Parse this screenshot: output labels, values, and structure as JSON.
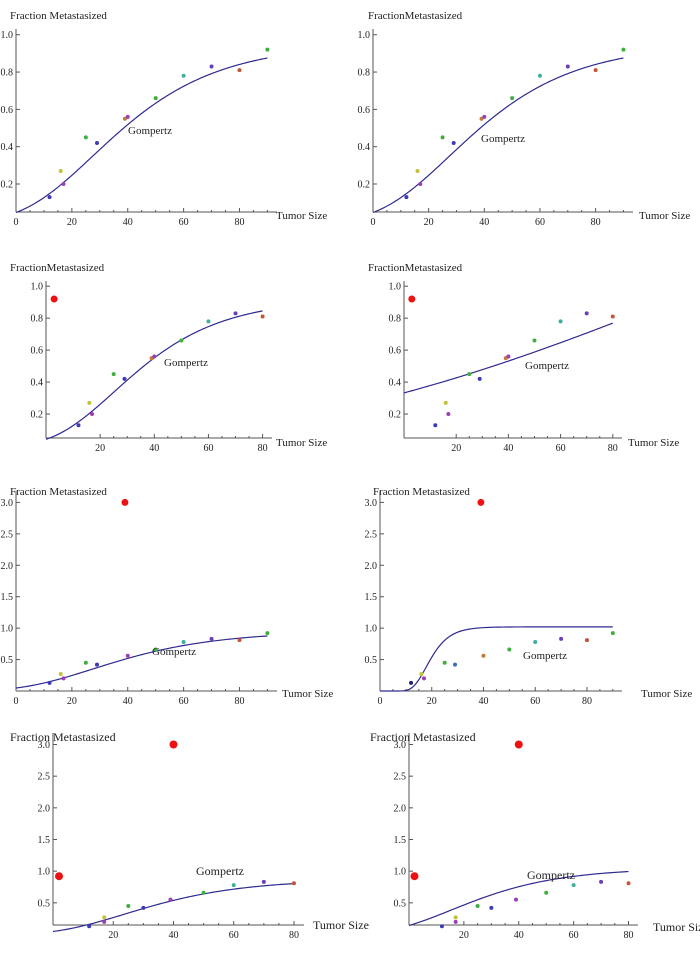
{
  "chart_data": [
    {
      "type": "scatter",
      "xlabel": "Tumor Size",
      "ylabel": "Fraction  Metastasized",
      "annotation": "Gompertz",
      "xlim": [
        0,
        92
      ],
      "ylim": [
        0.05,
        1.02
      ],
      "xticks": [
        "0",
        "20",
        "40",
        "60",
        "80"
      ],
      "yticks": [
        "0.2",
        "0.4",
        "0.6",
        "0.8",
        "1.0"
      ],
      "points": [
        {
          "x": 12,
          "y": 0.13,
          "color": "#3b3bb5"
        },
        {
          "x": 16,
          "y": 0.27,
          "color": "#c2c23a"
        },
        {
          "x": 17,
          "y": 0.2,
          "color": "#9a3fb5"
        },
        {
          "x": 25,
          "y": 0.45,
          "color": "#3fae3f"
        },
        {
          "x": 29,
          "y": 0.42,
          "color": "#3b3bb5"
        },
        {
          "x": 39,
          "y": 0.55,
          "color": "#c2793a"
        },
        {
          "x": 40,
          "y": 0.56,
          "color": "#9a3fb5"
        },
        {
          "x": 50,
          "y": 0.66,
          "color": "#3fae3f"
        },
        {
          "x": 60,
          "y": 0.78,
          "color": "#3fae9a"
        },
        {
          "x": 70,
          "y": 0.83,
          "color": "#6a3fb5"
        },
        {
          "x": 80,
          "y": 0.81,
          "color": "#c2553a"
        },
        {
          "x": 90,
          "y": 0.92,
          "color": "#3fae3f"
        }
      ],
      "fit": {
        "a": 0.95,
        "b": 3.0,
        "c": 0.04,
        "x_range": [
          0,
          90
        ]
      }
    },
    {
      "type": "scatter",
      "xlabel": "Tumor Size",
      "ylabel": "FractionMetastasized",
      "annotation": "Gompertz",
      "xlim": [
        0,
        92
      ],
      "ylim": [
        0.05,
        1.02
      ],
      "xticks": [
        "0",
        "20",
        "40",
        "60",
        "80"
      ],
      "yticks": [
        "0.2",
        "0.4",
        "0.6",
        "0.8",
        "1.0"
      ],
      "points": [
        {
          "x": 12,
          "y": 0.13,
          "color": "#3b3bb5"
        },
        {
          "x": 16,
          "y": 0.27,
          "color": "#c2c23a"
        },
        {
          "x": 17,
          "y": 0.2,
          "color": "#9a3fb5"
        },
        {
          "x": 25,
          "y": 0.45,
          "color": "#3fae3f"
        },
        {
          "x": 29,
          "y": 0.42,
          "color": "#3b3bb5"
        },
        {
          "x": 39,
          "y": 0.55,
          "color": "#c2793a"
        },
        {
          "x": 40,
          "y": 0.56,
          "color": "#9a3fb5"
        },
        {
          "x": 50,
          "y": 0.66,
          "color": "#3fae3f"
        },
        {
          "x": 60,
          "y": 0.78,
          "color": "#3fae9a"
        },
        {
          "x": 70,
          "y": 0.83,
          "color": "#6a3fb5"
        },
        {
          "x": 80,
          "y": 0.81,
          "color": "#c2553a"
        },
        {
          "x": 90,
          "y": 0.92,
          "color": "#3fae3f"
        }
      ],
      "fit": {
        "a": 0.95,
        "b": 3.0,
        "c": 0.04,
        "x_range": [
          0,
          90
        ]
      }
    },
    {
      "type": "scatter",
      "xlabel": "Tumor Size",
      "ylabel": "FractionMetastasized",
      "annotation": "Gompertz",
      "xlim": [
        0,
        82
      ],
      "ylim": [
        0.05,
        1.02
      ],
      "xticks": [
        "20",
        "40",
        "60",
        "80"
      ],
      "yticks": [
        "0.2",
        "0.4",
        "0.6",
        "0.8",
        "1.0"
      ],
      "highlight": {
        "x": 3,
        "y": 0.92,
        "color": "#ee1111"
      },
      "points": [
        {
          "x": 12,
          "y": 0.13,
          "color": "#3b3bb5"
        },
        {
          "x": 16,
          "y": 0.27,
          "color": "#c2c23a"
        },
        {
          "x": 17,
          "y": 0.2,
          "color": "#9a3fb5"
        },
        {
          "x": 25,
          "y": 0.45,
          "color": "#3fae3f"
        },
        {
          "x": 29,
          "y": 0.42,
          "color": "#3b3bb5"
        },
        {
          "x": 39,
          "y": 0.55,
          "color": "#c2793a"
        },
        {
          "x": 40,
          "y": 0.56,
          "color": "#9a3fb5"
        },
        {
          "x": 50,
          "y": 0.66,
          "color": "#3fae3f"
        },
        {
          "x": 60,
          "y": 0.78,
          "color": "#3fae9a"
        },
        {
          "x": 70,
          "y": 0.83,
          "color": "#6a3fb5"
        },
        {
          "x": 80,
          "y": 0.81,
          "color": "#c2553a"
        }
      ],
      "fit": {
        "a": 0.92,
        "b": 3.1,
        "c": 0.045,
        "x_range": [
          0,
          80
        ]
      }
    },
    {
      "type": "scatter",
      "xlabel": "Tumor Size",
      "ylabel": "FractionMetastasized",
      "annotation": "Gompertz",
      "xlim": [
        0,
        82
      ],
      "ylim": [
        0.05,
        1.02
      ],
      "xticks": [
        "20",
        "40",
        "60",
        "80"
      ],
      "yticks": [
        "0.2",
        "0.4",
        "0.6",
        "0.8",
        "1.0"
      ],
      "highlight": {
        "x": 3,
        "y": 0.92,
        "color": "#ee1111"
      },
      "points": [
        {
          "x": 12,
          "y": 0.13,
          "color": "#3b3bb5"
        },
        {
          "x": 16,
          "y": 0.27,
          "color": "#c2c23a"
        },
        {
          "x": 17,
          "y": 0.2,
          "color": "#9a3fb5"
        },
        {
          "x": 25,
          "y": 0.45,
          "color": "#3fae3f"
        },
        {
          "x": 29,
          "y": 0.42,
          "color": "#3b3bb5"
        },
        {
          "x": 39,
          "y": 0.55,
          "color": "#c2793a"
        },
        {
          "x": 40,
          "y": 0.56,
          "color": "#9a3fb5"
        },
        {
          "x": 50,
          "y": 0.66,
          "color": "#3fae3f"
        },
        {
          "x": 60,
          "y": 0.78,
          "color": "#3fae9a"
        },
        {
          "x": 70,
          "y": 0.83,
          "color": "#6a3fb5"
        },
        {
          "x": 80,
          "y": 0.81,
          "color": "#c2553a"
        }
      ],
      "fit": {
        "a": 3.0,
        "b": 2.2,
        "c": 0.006,
        "x_range": [
          0,
          80
        ]
      }
    },
    {
      "type": "scatter",
      "xlabel": "Tumor Size",
      "ylabel": "Fraction  Metastasized",
      "annotation": "Gompertz",
      "xlim": [
        0,
        92
      ],
      "ylim": [
        0.0,
        3.15
      ],
      "xticks": [
        "0",
        "20",
        "40",
        "60",
        "80"
      ],
      "yticks": [
        "0.5",
        "1.0",
        "1.5",
        "2.0",
        "2.5",
        "3.0"
      ],
      "highlight": {
        "x": 39,
        "y": 3.0,
        "color": "#ee1111"
      },
      "points": [
        {
          "x": 12,
          "y": 0.13,
          "color": "#3b3bb5"
        },
        {
          "x": 16,
          "y": 0.27,
          "color": "#c2c23a"
        },
        {
          "x": 17,
          "y": 0.2,
          "color": "#9a3fb5"
        },
        {
          "x": 25,
          "y": 0.45,
          "color": "#3fae3f"
        },
        {
          "x": 29,
          "y": 0.42,
          "color": "#3b3bb5"
        },
        {
          "x": 40,
          "y": 0.56,
          "color": "#9a3fb5"
        },
        {
          "x": 50,
          "y": 0.66,
          "color": "#3fae3f"
        },
        {
          "x": 60,
          "y": 0.78,
          "color": "#3fae9a"
        },
        {
          "x": 70,
          "y": 0.83,
          "color": "#6a3fb5"
        },
        {
          "x": 80,
          "y": 0.81,
          "color": "#c2553a"
        },
        {
          "x": 90,
          "y": 0.92,
          "color": "#3fae3f"
        }
      ],
      "fit": {
        "a": 0.95,
        "b": 3.0,
        "c": 0.04,
        "x_range": [
          0,
          90
        ]
      }
    },
    {
      "type": "scatter",
      "xlabel": "Tumor Size",
      "ylabel": "Fraction  Metastasized",
      "annotation": "Gompertz",
      "xlim": [
        0,
        92
      ],
      "ylim": [
        0.0,
        3.15
      ],
      "xticks": [
        "0",
        "20",
        "40",
        "60",
        "80"
      ],
      "yticks": [
        "0.5",
        "1.0",
        "1.5",
        "2.0",
        "2.5",
        "3.0"
      ],
      "highlight": {
        "x": 39,
        "y": 3.0,
        "color": "#ee1111"
      },
      "points": [
        {
          "x": 12,
          "y": 0.13,
          "color": "#22226a"
        },
        {
          "x": 16,
          "y": 0.27,
          "color": "#c2c23a"
        },
        {
          "x": 17,
          "y": 0.2,
          "color": "#9a3fb5"
        },
        {
          "x": 25,
          "y": 0.45,
          "color": "#3fae3f"
        },
        {
          "x": 29,
          "y": 0.42,
          "color": "#3b6bb5"
        },
        {
          "x": 40,
          "y": 0.56,
          "color": "#c2793a"
        },
        {
          "x": 50,
          "y": 0.66,
          "color": "#3fae3f"
        },
        {
          "x": 60,
          "y": 0.78,
          "color": "#3fae9a"
        },
        {
          "x": 70,
          "y": 0.83,
          "color": "#6a3fb5"
        },
        {
          "x": 80,
          "y": 0.81,
          "color": "#c2553a"
        },
        {
          "x": 90,
          "y": 0.92,
          "color": "#3fae3f"
        }
      ],
      "fit": {
        "a": 1.02,
        "b": 35,
        "c": 0.2,
        "x_range": [
          0,
          90
        ]
      }
    },
    {
      "type": "scatter",
      "xlabel": "Tumor Size",
      "ylabel": "Fraction  Metastasized",
      "annotation": "Gompertz",
      "xlim": [
        0,
        82
      ],
      "ylim": [
        0.15,
        3.15
      ],
      "xticks": [
        "20",
        "40",
        "60",
        "80"
      ],
      "yticks": [
        "0.5",
        "1.0",
        "1.5",
        "2.0",
        "2.5",
        "3.0"
      ],
      "highlight_points": [
        {
          "x": 40,
          "y": 3.0,
          "color": "#ee1111"
        },
        {
          "x": 2,
          "y": 0.92,
          "color": "#ee1111"
        }
      ],
      "points": [
        {
          "x": 12,
          "y": 0.13,
          "color": "#3b3bb5"
        },
        {
          "x": 17,
          "y": 0.27,
          "color": "#c2c23a"
        },
        {
          "x": 17,
          "y": 0.2,
          "color": "#9a3fb5"
        },
        {
          "x": 25,
          "y": 0.45,
          "color": "#3fae3f"
        },
        {
          "x": 30,
          "y": 0.42,
          "color": "#3b3bb5"
        },
        {
          "x": 39,
          "y": 0.55,
          "color": "#9a3fb5"
        },
        {
          "x": 50,
          "y": 0.66,
          "color": "#3fae3f"
        },
        {
          "x": 60,
          "y": 0.78,
          "color": "#3fae9a"
        },
        {
          "x": 70,
          "y": 0.83,
          "color": "#6a3fb5"
        },
        {
          "x": 80,
          "y": 0.81,
          "color": "#c2553a"
        }
      ],
      "fit": {
        "a": 0.87,
        "b": 2.9,
        "c": 0.045,
        "x_range": [
          0,
          80
        ]
      }
    },
    {
      "type": "scatter",
      "xlabel": "Tumor Size",
      "ylabel": "Fraction  Metastasized",
      "annotation": "Gompertz",
      "xlim": [
        0,
        82
      ],
      "ylim": [
        0.15,
        3.15
      ],
      "xticks": [
        "20",
        "40",
        "60",
        "80"
      ],
      "yticks": [
        "0.5",
        "1.0",
        "1.5",
        "2.0",
        "2.5",
        "3.0"
      ],
      "highlight_points": [
        {
          "x": 40,
          "y": 3.0,
          "color": "#ee1111"
        },
        {
          "x": 2,
          "y": 0.92,
          "color": "#ee1111"
        }
      ],
      "points": [
        {
          "x": 12,
          "y": 0.13,
          "color": "#3b3bb5"
        },
        {
          "x": 17,
          "y": 0.27,
          "color": "#c2c23a"
        },
        {
          "x": 17,
          "y": 0.2,
          "color": "#9a3fb5"
        },
        {
          "x": 25,
          "y": 0.45,
          "color": "#3fae3f"
        },
        {
          "x": 30,
          "y": 0.42,
          "color": "#3b3bb5"
        },
        {
          "x": 39,
          "y": 0.55,
          "color": "#9a3fb5"
        },
        {
          "x": 50,
          "y": 0.66,
          "color": "#3fae3f"
        },
        {
          "x": 60,
          "y": 0.78,
          "color": "#3fae9a"
        },
        {
          "x": 70,
          "y": 0.83,
          "color": "#6a3fb5"
        },
        {
          "x": 80,
          "y": 0.81,
          "color": "#c2553a"
        }
      ],
      "fit": {
        "a": 1.05,
        "b": 2.0,
        "c": 0.045,
        "x_range": [
          0,
          80
        ]
      }
    }
  ]
}
